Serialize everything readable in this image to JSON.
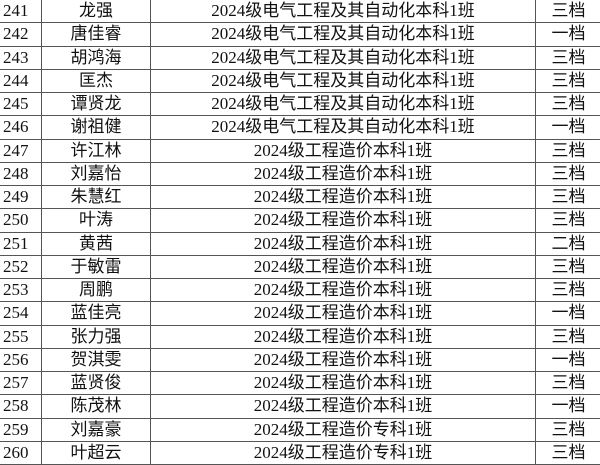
{
  "rows": [
    {
      "no": "241",
      "name": "龙强",
      "class": "2024级电气工程及其自动化本科1班",
      "grade": "三档"
    },
    {
      "no": "242",
      "name": "唐佳睿",
      "class": "2024级电气工程及其自动化本科1班",
      "grade": "一档"
    },
    {
      "no": "243",
      "name": "胡鸿海",
      "class": "2024级电气工程及其自动化本科1班",
      "grade": "三档"
    },
    {
      "no": "244",
      "name": "匡杰",
      "class": "2024级电气工程及其自动化本科1班",
      "grade": "三档"
    },
    {
      "no": "245",
      "name": "谭贤龙",
      "class": "2024级电气工程及其自动化本科1班",
      "grade": "三档"
    },
    {
      "no": "246",
      "name": "谢祖健",
      "class": "2024级电气工程及其自动化本科1班",
      "grade": "一档"
    },
    {
      "no": "247",
      "name": "许江林",
      "class": "2024级工程造价本科1班",
      "grade": "三档"
    },
    {
      "no": "248",
      "name": "刘嘉怡",
      "class": "2024级工程造价本科1班",
      "grade": "三档"
    },
    {
      "no": "249",
      "name": "朱慧红",
      "class": "2024级工程造价本科1班",
      "grade": "三档"
    },
    {
      "no": "250",
      "name": "叶涛",
      "class": "2024级工程造价本科1班",
      "grade": "三档"
    },
    {
      "no": "251",
      "name": "黄茜",
      "class": "2024级工程造价本科1班",
      "grade": "二档"
    },
    {
      "no": "252",
      "name": "于敏雷",
      "class": "2024级工程造价本科1班",
      "grade": "三档"
    },
    {
      "no": "253",
      "name": "周鹏",
      "class": "2024级工程造价本科1班",
      "grade": "三档"
    },
    {
      "no": "254",
      "name": "蓝佳亮",
      "class": "2024级工程造价本科1班",
      "grade": "一档"
    },
    {
      "no": "255",
      "name": "张力强",
      "class": "2024级工程造价本科1班",
      "grade": "三档"
    },
    {
      "no": "256",
      "name": "贺淇雯",
      "class": "2024级工程造价本科1班",
      "grade": "一档"
    },
    {
      "no": "257",
      "name": "蓝贤俊",
      "class": "2024级工程造价本科1班",
      "grade": "三档"
    },
    {
      "no": "258",
      "name": "陈茂林",
      "class": "2024级工程造价本科1班",
      "grade": "一档"
    },
    {
      "no": "259",
      "name": "刘嘉豪",
      "class": "2024级工程造价专科1班",
      "grade": "三档"
    },
    {
      "no": "260",
      "name": "叶超云",
      "class": "2024级工程造价专科1班",
      "grade": "三档"
    }
  ]
}
